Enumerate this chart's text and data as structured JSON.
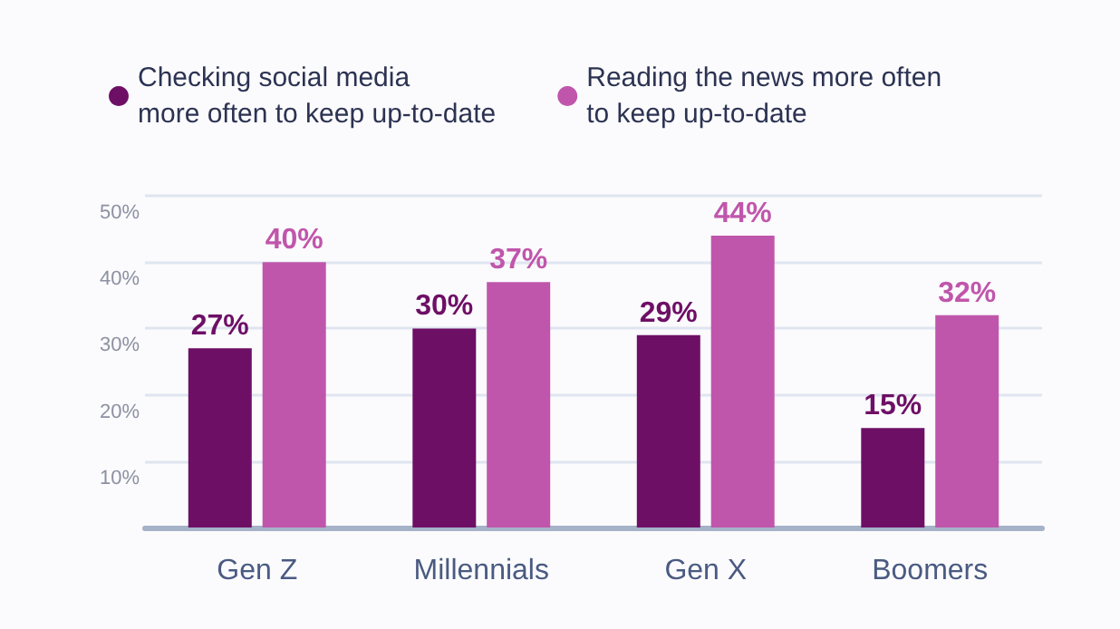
{
  "chart_data": {
    "type": "bar",
    "categories": [
      "Gen Z",
      "Millennials",
      "Gen X",
      "Boomers"
    ],
    "series": [
      {
        "name": "Checking social media\nmore often to keep up-to-date",
        "color": "#6e0f66",
        "values": [
          27,
          30,
          29,
          15
        ],
        "value_labels": [
          "27%",
          "30%",
          "29%",
          "15%"
        ]
      },
      {
        "name": "Reading the news more often\nto keep up-to-date",
        "color": "#c056ab",
        "values": [
          40,
          37,
          44,
          32
        ],
        "value_labels": [
          "40%",
          "37%",
          "44%",
          "32%"
        ]
      }
    ],
    "ylim": [
      0,
      50
    ],
    "yticks": [
      {
        "value": 10,
        "label": "10%"
      },
      {
        "value": 20,
        "label": "20%"
      },
      {
        "value": 30,
        "label": "30%"
      },
      {
        "value": 40,
        "label": "40%"
      },
      {
        "value": 50,
        "label": "50%"
      }
    ],
    "grid": "y",
    "legend": "top left"
  }
}
